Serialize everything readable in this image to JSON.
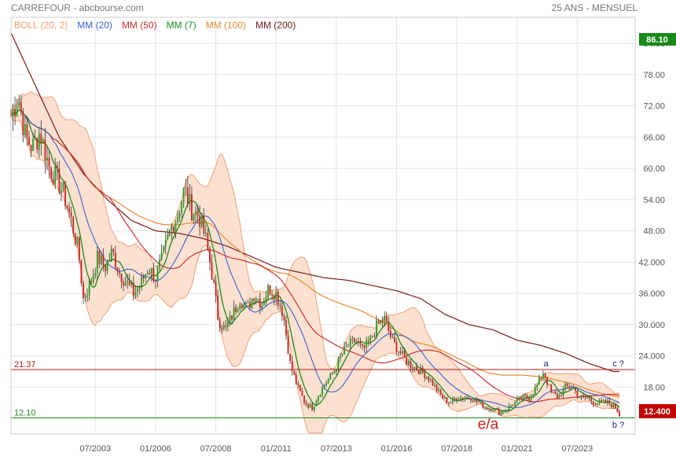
{
  "header": {
    "title": "CARREFOUR - abcbourse.com",
    "period": "25 ANS - MENSUEL"
  },
  "legend": [
    {
      "label": "BOLL (20, 2)",
      "color": "#f0a070"
    },
    {
      "label": "MM (20)",
      "color": "#3a5fd0"
    },
    {
      "label": "MM (50)",
      "color": "#d03030"
    },
    {
      "label": "MM (7)",
      "color": "#1a8a1a"
    },
    {
      "label": "MM (100)",
      "color": "#e88a30"
    },
    {
      "label": "MM (200)",
      "color": "#7a1a1a"
    }
  ],
  "colors": {
    "up": "#1f9a1f",
    "down": "#c82020",
    "boll_fill": "#fde1d0",
    "boll_line": "#f0a070",
    "grid": "#e4e4e4",
    "last_price_bg": "#c00000",
    "high_badge_bg": "#1a8a1a",
    "level_high_line": "#b01818",
    "level_low_line": "#1a8a1a"
  },
  "price_badges": {
    "high": "86.10",
    "last": "12.400"
  },
  "levels": [
    {
      "label": "21.37",
      "value": 21.37,
      "kind": "resistance"
    },
    {
      "label": "12.10",
      "value": 12.1,
      "kind": "support"
    }
  ],
  "annotations": [
    {
      "text": "a",
      "date": 2022.2,
      "value": 22.0,
      "color": "#1a1a8a"
    },
    {
      "text": "c ?",
      "date": 2025.2,
      "value": 22.0,
      "color": "#1a1a8a"
    },
    {
      "text": "b ?",
      "date": 2025.2,
      "value": 10.2,
      "color": "#1a1a8a"
    },
    {
      "text": "e/a",
      "date": 2019.8,
      "value": 10.0,
      "color": "#c82020"
    }
  ],
  "chart_data": {
    "type": "candlestick",
    "x_ticks": [
      "07/2003",
      "01/2006",
      "07/2008",
      "01/2011",
      "07/2013",
      "01/2016",
      "07/2018",
      "01/2021",
      "07/2023"
    ],
    "x_tick_dates": [
      2003.5,
      2006.0,
      2008.5,
      2011.0,
      2013.5,
      2016.0,
      2018.5,
      2021.0,
      2023.5
    ],
    "y_ticks": [
      "84.00",
      "78.00",
      "72.00",
      "66.00",
      "60.00",
      "54.00",
      "48.00",
      "42.000",
      "36.000",
      "30.000",
      "24.000",
      "18.00"
    ],
    "y_tick_values": [
      84,
      78,
      72,
      66,
      60,
      54,
      48,
      42,
      36,
      30,
      24,
      18
    ],
    "xlim": [
      2000.0,
      2025.9
    ],
    "ylim": [
      9.0,
      89.0
    ],
    "grid": true,
    "legend_position": "top-left",
    "price_anchors": [
      [
        2000.0,
        70
      ],
      [
        2000.3,
        74
      ],
      [
        2000.6,
        66
      ],
      [
        2000.9,
        64
      ],
      [
        2001.2,
        67
      ],
      [
        2001.6,
        60
      ],
      [
        2001.9,
        58
      ],
      [
        2002.2,
        55
      ],
      [
        2002.5,
        50
      ],
      [
        2002.8,
        44
      ],
      [
        2003.0,
        35
      ],
      [
        2003.3,
        38
      ],
      [
        2003.6,
        43
      ],
      [
        2003.9,
        41
      ],
      [
        2004.2,
        44
      ],
      [
        2004.5,
        40
      ],
      [
        2004.8,
        38
      ],
      [
        2005.1,
        36
      ],
      [
        2005.4,
        38
      ],
      [
        2005.7,
        41
      ],
      [
        2006.0,
        39
      ],
      [
        2006.3,
        43
      ],
      [
        2006.6,
        48
      ],
      [
        2006.9,
        51
      ],
      [
        2007.2,
        56
      ],
      [
        2007.5,
        52
      ],
      [
        2007.8,
        51
      ],
      [
        2008.1,
        46
      ],
      [
        2008.4,
        38
      ],
      [
        2008.6,
        31
      ],
      [
        2008.9,
        29
      ],
      [
        2009.2,
        32
      ],
      [
        2009.5,
        35
      ],
      [
        2009.8,
        33
      ],
      [
        2010.1,
        36
      ],
      [
        2010.4,
        34
      ],
      [
        2010.7,
        37
      ],
      [
        2011.0,
        36
      ],
      [
        2011.3,
        32
      ],
      [
        2011.6,
        22
      ],
      [
        2011.9,
        18
      ],
      [
        2012.2,
        15
      ],
      [
        2012.5,
        14
      ],
      [
        2012.8,
        17
      ],
      [
        2013.1,
        19
      ],
      [
        2013.4,
        21
      ],
      [
        2013.7,
        24
      ],
      [
        2014.0,
        26
      ],
      [
        2014.3,
        27
      ],
      [
        2014.6,
        25
      ],
      [
        2014.9,
        27
      ],
      [
        2015.2,
        30
      ],
      [
        2015.5,
        31
      ],
      [
        2015.8,
        27
      ],
      [
        2016.1,
        25
      ],
      [
        2016.4,
        23
      ],
      [
        2016.7,
        22
      ],
      [
        2017.0,
        21
      ],
      [
        2017.3,
        20
      ],
      [
        2017.6,
        18
      ],
      [
        2017.9,
        16
      ],
      [
        2018.2,
        15
      ],
      [
        2018.5,
        16
      ],
      [
        2018.8,
        16
      ],
      [
        2019.1,
        16
      ],
      [
        2019.4,
        15
      ],
      [
        2019.7,
        14
      ],
      [
        2020.0,
        14
      ],
      [
        2020.3,
        13
      ],
      [
        2020.6,
        14
      ],
      [
        2020.9,
        15
      ],
      [
        2021.2,
        16
      ],
      [
        2021.5,
        16
      ],
      [
        2021.8,
        18
      ],
      [
        2022.1,
        21
      ],
      [
        2022.4,
        17
      ],
      [
        2022.7,
        16
      ],
      [
        2023.0,
        18
      ],
      [
        2023.3,
        18
      ],
      [
        2023.6,
        16
      ],
      [
        2023.9,
        16
      ],
      [
        2024.2,
        15
      ],
      [
        2024.5,
        15
      ],
      [
        2024.8,
        15
      ],
      [
        2025.1,
        14
      ],
      [
        2025.3,
        12.4
      ]
    ],
    "ma200_anchors": [
      [
        2000.0,
        86
      ],
      [
        2001.0,
        76
      ],
      [
        2002.0,
        66
      ],
      [
        2003.0,
        59
      ],
      [
        2004.0,
        54
      ],
      [
        2005.0,
        50
      ],
      [
        2006.0,
        48
      ],
      [
        2007.0,
        47.5
      ],
      [
        2008.0,
        46.5
      ],
      [
        2009.0,
        45
      ],
      [
        2010.0,
        43
      ],
      [
        2011.0,
        41
      ],
      [
        2012.0,
        40
      ],
      [
        2013.0,
        39
      ],
      [
        2014.0,
        38.5
      ],
      [
        2015.0,
        37.5
      ],
      [
        2016.0,
        36.5
      ],
      [
        2017.0,
        35
      ],
      [
        2018.0,
        32
      ],
      [
        2019.0,
        30
      ],
      [
        2020.0,
        29
      ],
      [
        2021.0,
        27
      ],
      [
        2022.0,
        26
      ],
      [
        2023.0,
        24.5
      ],
      [
        2024.0,
        22.5
      ],
      [
        2025.0,
        21
      ]
    ]
  }
}
